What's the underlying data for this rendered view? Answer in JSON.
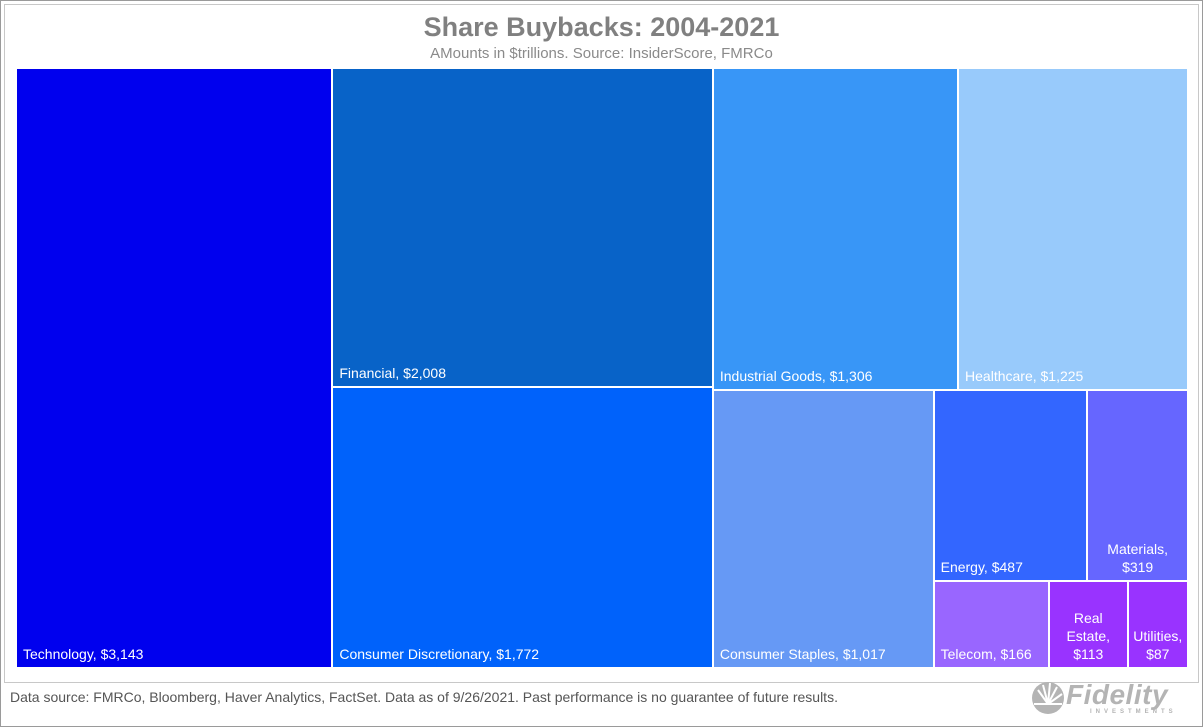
{
  "title": "Share Buybacks: 2004-2021",
  "subtitle": "AMounts in $trillions. Source: InsiderScore, FMRCo",
  "footer": "Data source: FMRCo, Bloomberg, Haver Analytics, FactSet. Data as of 9/26/2021. Past performance is no guarantee of future results.",
  "logo": {
    "word": "Fidelity",
    "sub": "INVESTMENTS",
    "icon": "fidelity-sunburst-icon"
  },
  "colors": {
    "Technology": "#0000ee",
    "Financial": "#0863c8",
    "Consumer Discretionary": "#0062fb",
    "Industrial Goods": "#3896f7",
    "Healthcare": "#98cafb",
    "Consumer Staples": "#6699f5",
    "Energy": "#3366ff",
    "Materials": "#6666ff",
    "Telecom": "#9966ff",
    "Real Estate": "#9933ff",
    "Utilities": "#9933ff"
  },
  "chart_data": {
    "type": "treemap",
    "title": "Share Buybacks: 2004-2021",
    "subtitle": "AMounts in $trillions. Source: InsiderScore, FMRCo",
    "items": [
      {
        "name": "Technology",
        "value": 3143,
        "label": "Technology, $3,143"
      },
      {
        "name": "Financial",
        "value": 2008,
        "label": "Financial, $2,008"
      },
      {
        "name": "Consumer Discretionary",
        "value": 1772,
        "label": "Consumer Discretionary, $1,772"
      },
      {
        "name": "Industrial Goods",
        "value": 1306,
        "label": "Industrial Goods, $1,306"
      },
      {
        "name": "Healthcare",
        "value": 1225,
        "label": "Healthcare, $1,225"
      },
      {
        "name": "Consumer Staples",
        "value": 1017,
        "label": "Consumer Staples, $1,017"
      },
      {
        "name": "Energy",
        "value": 487,
        "label": "Energy, $487"
      },
      {
        "name": "Materials",
        "value": 319,
        "label": "Materials,\n$319"
      },
      {
        "name": "Telecom",
        "value": 166,
        "label": "Telecom, $166"
      },
      {
        "name": "Real Estate",
        "value": 113,
        "label": "Real\nEstate,\n$113"
      },
      {
        "name": "Utilities",
        "value": 87,
        "label": "Utilities,\n$87"
      }
    ]
  }
}
